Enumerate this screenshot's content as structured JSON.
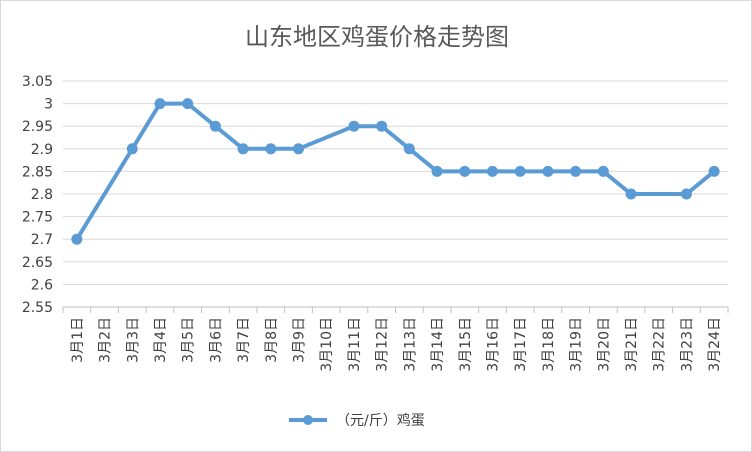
{
  "chart_data": {
    "type": "line",
    "title": "山东地区鸡蛋价格走势图",
    "categories": [
      "3月1日",
      "3月2日",
      "3月3日",
      "3月4日",
      "3月5日",
      "3月6日",
      "3月7日",
      "3月8日",
      "3月9日",
      "3月10日",
      "3月11日",
      "3月12日",
      "3月13日",
      "3月14日",
      "3月15日",
      "3月16日",
      "3月17日",
      "3月18日",
      "3月19日",
      "3月20日",
      "3月21日",
      "3月22日",
      "3月23日",
      "3月24日"
    ],
    "series": [
      {
        "name": "（元/斤）鸡蛋",
        "color": "#5b9bd5",
        "values": [
          2.7,
          null,
          2.9,
          3.0,
          3.0,
          2.95,
          2.9,
          2.9,
          2.9,
          null,
          2.95,
          2.95,
          2.9,
          2.85,
          2.85,
          2.85,
          2.85,
          2.85,
          2.85,
          2.85,
          2.8,
          null,
          2.8,
          2.85
        ]
      }
    ],
    "yticks": [
      "2.55",
      "2.6",
      "2.65",
      "2.7",
      "2.75",
      "2.8",
      "2.85",
      "2.9",
      "2.95",
      "3",
      "3.05"
    ],
    "ylim": [
      2.55,
      3.05
    ],
    "grid": true,
    "legend": "bottom"
  }
}
